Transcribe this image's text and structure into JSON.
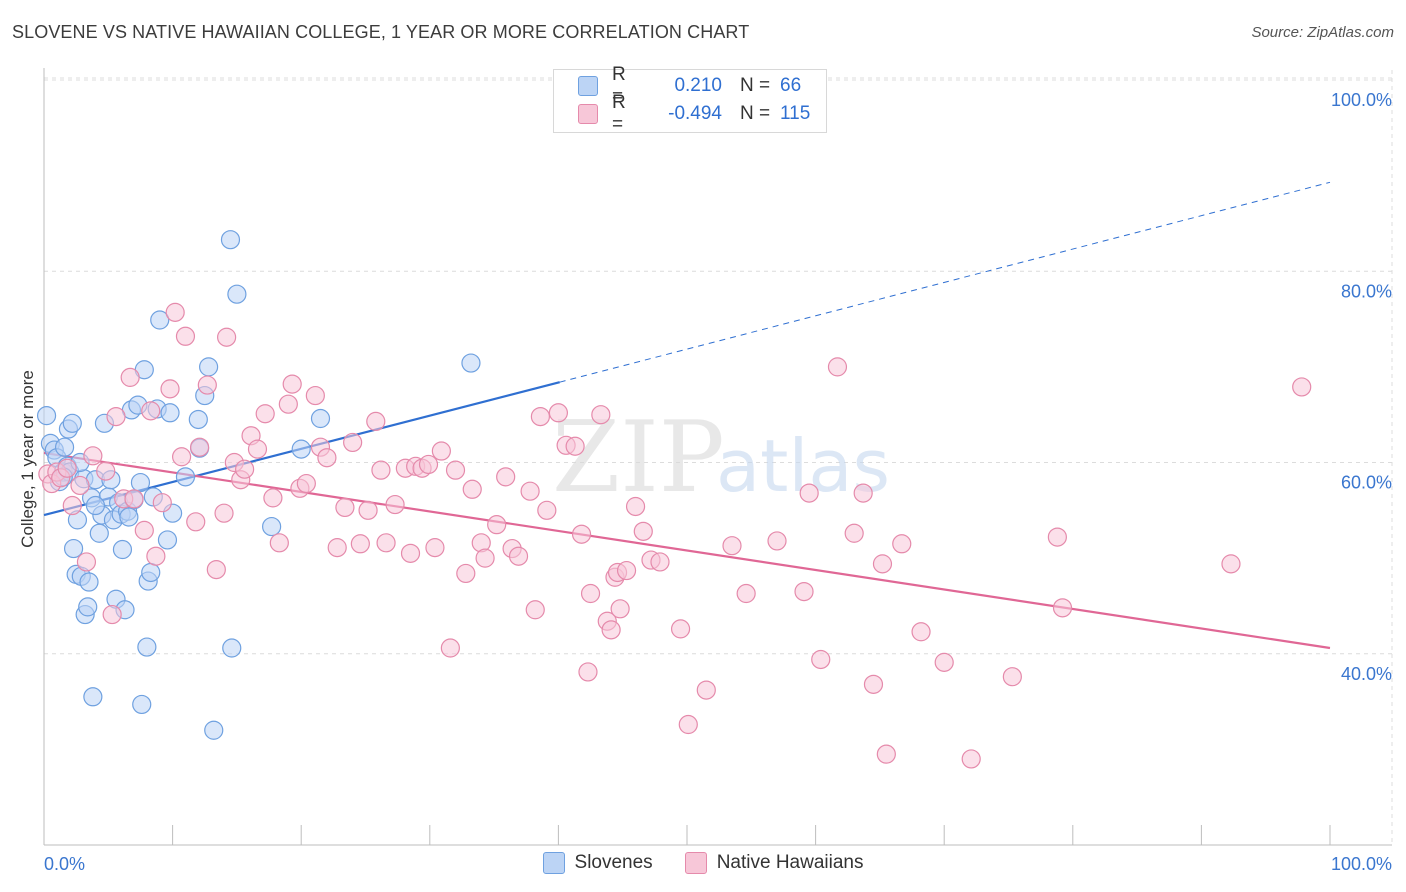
{
  "title": "SLOVENE VS NATIVE HAWAIIAN COLLEGE, 1 YEAR OR MORE CORRELATION CHART",
  "source": "Source: ZipAtlas.com",
  "watermark": {
    "zip": "ZIP",
    "atlas": "atlas"
  },
  "legend": {
    "r_label": "R =",
    "n_label": "N =",
    "rows": [
      {
        "r": "0.210",
        "n": "66",
        "fill": "#bcd4f5",
        "stroke": "#6fa1e0"
      },
      {
        "r": "-0.494",
        "n": "115",
        "fill": "#f7c7d8",
        "stroke": "#e58aab"
      }
    ]
  },
  "chart_data": {
    "type": "scatter",
    "title": "SLOVENE VS NATIVE HAWAIIAN COLLEGE, 1 YEAR OR MORE CORRELATION CHART",
    "xlabel": "",
    "ylabel": "College, 1 year or more",
    "xlim": [
      0,
      100
    ],
    "ylim": [
      20,
      102
    ],
    "x_tick_labels": [
      "0.0%",
      "100.0%"
    ],
    "y_ticks": [
      40,
      60,
      80,
      100
    ],
    "y_tick_labels": [
      "40.0%",
      "60.0%",
      "80.0%",
      "100.0%"
    ],
    "x_minor_ticks": [
      10,
      20,
      30,
      40,
      50,
      60,
      70,
      80,
      90,
      100
    ],
    "grid": true,
    "series": [
      {
        "name": "Slovenes",
        "color": "#6fa1e0",
        "fill": "#bcd4f5",
        "trend": {
          "x": [
            0,
            40.1
          ],
          "y": [
            54.5,
            68.4
          ],
          "dashed_to": [
            100,
            89.3
          ]
        },
        "points": [
          [
            0.2,
            64.9
          ],
          [
            0.5,
            62.0
          ],
          [
            0.8,
            61.3
          ],
          [
            1.0,
            60.5
          ],
          [
            1.2,
            58.0
          ],
          [
            1.5,
            59.0
          ],
          [
            1.6,
            61.6
          ],
          [
            1.8,
            59.6
          ],
          [
            2.0,
            59.0
          ],
          [
            1.9,
            63.5
          ],
          [
            2.2,
            64.1
          ],
          [
            2.3,
            51.0
          ],
          [
            2.5,
            48.3
          ],
          [
            2.6,
            54.0
          ],
          [
            2.9,
            48.1
          ],
          [
            3.1,
            58.3
          ],
          [
            3.2,
            44.1
          ],
          [
            3.4,
            44.9
          ],
          [
            3.5,
            47.5
          ],
          [
            3.7,
            56.3
          ],
          [
            4.0,
            58.2
          ],
          [
            4.3,
            52.6
          ],
          [
            4.5,
            54.5
          ],
          [
            4.7,
            64.1
          ],
          [
            5.0,
            56.4
          ],
          [
            5.2,
            58.2
          ],
          [
            5.4,
            54.0
          ],
          [
            5.6,
            45.7
          ],
          [
            5.8,
            55.8
          ],
          [
            6.0,
            54.6
          ],
          [
            6.1,
            50.9
          ],
          [
            6.3,
            44.6
          ],
          [
            6.5,
            54.9
          ],
          [
            6.8,
            65.5
          ],
          [
            7.0,
            56.1
          ],
          [
            7.3,
            66.0
          ],
          [
            7.5,
            57.9
          ],
          [
            7.8,
            69.7
          ],
          [
            8.1,
            47.6
          ],
          [
            8.3,
            48.5
          ],
          [
            8.5,
            56.4
          ],
          [
            8.8,
            65.6
          ],
          [
            9.0,
            74.9
          ],
          [
            9.6,
            51.9
          ],
          [
            9.8,
            65.2
          ],
          [
            10.0,
            54.7
          ],
          [
            11.0,
            58.5
          ],
          [
            12.0,
            64.5
          ],
          [
            12.1,
            61.5
          ],
          [
            12.5,
            67.0
          ],
          [
            12.8,
            70.0
          ],
          [
            14.5,
            83.3
          ],
          [
            15.0,
            77.6
          ],
          [
            14.6,
            40.6
          ],
          [
            17.7,
            53.3
          ],
          [
            20.0,
            61.4
          ],
          [
            21.5,
            64.6
          ],
          [
            33.2,
            70.4
          ],
          [
            8.0,
            40.7
          ],
          [
            3.8,
            35.5
          ],
          [
            7.6,
            34.7
          ],
          [
            13.2,
            32.0
          ],
          [
            1.5,
            58.5
          ],
          [
            6.6,
            54.3
          ],
          [
            4.0,
            55.5
          ],
          [
            2.8,
            60.0
          ]
        ]
      },
      {
        "name": "Native Hawaiians",
        "color": "#e58aab",
        "fill": "#f7c7d8",
        "trend": {
          "x": [
            0,
            100
          ],
          "y": [
            61.0,
            40.6
          ]
        },
        "points": [
          [
            0.3,
            58.8
          ],
          [
            0.6,
            57.8
          ],
          [
            1.0,
            59.0
          ],
          [
            1.3,
            58.4
          ],
          [
            1.8,
            59.4
          ],
          [
            2.2,
            55.5
          ],
          [
            2.8,
            57.6
          ],
          [
            3.3,
            49.6
          ],
          [
            3.8,
            60.7
          ],
          [
            4.8,
            59.1
          ],
          [
            5.3,
            44.1
          ],
          [
            5.6,
            64.8
          ],
          [
            6.2,
            56.2
          ],
          [
            6.7,
            68.9
          ],
          [
            7.0,
            56.2
          ],
          [
            7.8,
            52.9
          ],
          [
            8.3,
            65.4
          ],
          [
            8.7,
            50.2
          ],
          [
            9.2,
            55.8
          ],
          [
            9.8,
            67.7
          ],
          [
            10.2,
            75.7
          ],
          [
            10.7,
            60.6
          ],
          [
            11.0,
            73.2
          ],
          [
            11.8,
            53.8
          ],
          [
            12.1,
            61.6
          ],
          [
            12.7,
            68.1
          ],
          [
            13.4,
            48.8
          ],
          [
            14.0,
            54.7
          ],
          [
            14.2,
            73.1
          ],
          [
            14.8,
            60.0
          ],
          [
            15.3,
            58.2
          ],
          [
            15.6,
            59.3
          ],
          [
            16.1,
            62.8
          ],
          [
            16.6,
            61.4
          ],
          [
            17.2,
            65.1
          ],
          [
            17.8,
            56.3
          ],
          [
            18.3,
            51.6
          ],
          [
            19.0,
            66.1
          ],
          [
            19.3,
            68.2
          ],
          [
            19.9,
            57.3
          ],
          [
            20.4,
            57.8
          ],
          [
            21.1,
            67.0
          ],
          [
            21.5,
            61.6
          ],
          [
            22.0,
            60.5
          ],
          [
            22.8,
            51.1
          ],
          [
            23.4,
            55.3
          ],
          [
            24.0,
            62.1
          ],
          [
            24.6,
            51.5
          ],
          [
            25.2,
            55.0
          ],
          [
            25.8,
            64.3
          ],
          [
            26.2,
            59.2
          ],
          [
            26.6,
            51.6
          ],
          [
            27.3,
            55.6
          ],
          [
            28.1,
            59.4
          ],
          [
            28.5,
            50.5
          ],
          [
            28.9,
            59.6
          ],
          [
            29.4,
            59.4
          ],
          [
            29.9,
            59.8
          ],
          [
            30.4,
            51.1
          ],
          [
            30.9,
            61.2
          ],
          [
            31.6,
            40.6
          ],
          [
            32.0,
            59.2
          ],
          [
            32.8,
            48.4
          ],
          [
            33.3,
            57.2
          ],
          [
            34.0,
            51.6
          ],
          [
            34.3,
            50.0
          ],
          [
            35.2,
            53.5
          ],
          [
            35.9,
            58.5
          ],
          [
            36.4,
            51.0
          ],
          [
            36.9,
            50.2
          ],
          [
            37.8,
            57.0
          ],
          [
            38.2,
            44.6
          ],
          [
            38.6,
            64.8
          ],
          [
            39.1,
            55.0
          ],
          [
            40.0,
            65.2
          ],
          [
            40.6,
            61.8
          ],
          [
            41.3,
            61.7
          ],
          [
            41.8,
            52.5
          ],
          [
            42.3,
            38.1
          ],
          [
            42.5,
            46.3
          ],
          [
            43.3,
            65.0
          ],
          [
            43.8,
            43.4
          ],
          [
            44.1,
            42.5
          ],
          [
            44.4,
            48.0
          ],
          [
            44.6,
            48.5
          ],
          [
            44.8,
            44.7
          ],
          [
            45.3,
            48.7
          ],
          [
            46.0,
            55.4
          ],
          [
            46.6,
            52.8
          ],
          [
            47.2,
            49.8
          ],
          [
            47.9,
            49.6
          ],
          [
            49.5,
            42.6
          ],
          [
            50.1,
            32.6
          ],
          [
            51.5,
            36.2
          ],
          [
            53.5,
            51.3
          ],
          [
            54.6,
            46.3
          ],
          [
            57.0,
            51.8
          ],
          [
            59.1,
            46.5
          ],
          [
            60.4,
            39.4
          ],
          [
            59.5,
            56.8
          ],
          [
            61.7,
            70.0
          ],
          [
            63.0,
            52.6
          ],
          [
            63.7,
            56.8
          ],
          [
            64.5,
            36.8
          ],
          [
            65.2,
            49.4
          ],
          [
            65.5,
            29.5
          ],
          [
            66.7,
            51.5
          ],
          [
            68.2,
            42.3
          ],
          [
            70.0,
            39.1
          ],
          [
            72.1,
            29.0
          ],
          [
            75.3,
            37.6
          ],
          [
            79.2,
            44.8
          ],
          [
            78.8,
            52.2
          ],
          [
            92.3,
            49.4
          ],
          [
            97.8,
            67.9
          ]
        ]
      }
    ]
  },
  "bottom_legend": [
    "Slovenes",
    "Native Hawaiians"
  ]
}
